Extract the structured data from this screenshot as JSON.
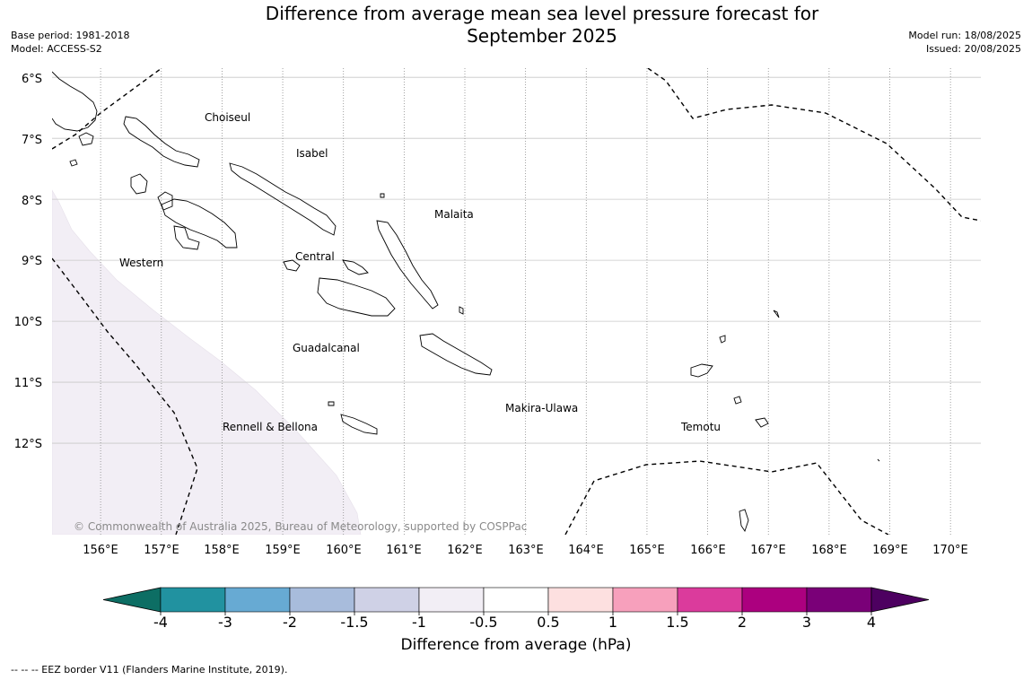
{
  "title": {
    "line1": "Difference from average mean sea level pressure forecast for",
    "line2": "September 2025"
  },
  "meta_left": {
    "base_period": "Base period: 1981-2018",
    "model": "Model: ACCESS-S2"
  },
  "meta_right": {
    "model_run": "Model run: 18/08/2025",
    "issued": "Issued: 20/08/2025"
  },
  "map": {
    "lon_range": [
      155.2,
      170.5
    ],
    "lat_range": [
      -13.5,
      -5.85
    ],
    "latitude_labels": [
      "6°S",
      "7°S",
      "8°S",
      "9°S",
      "10°S",
      "11°S",
      "12°S"
    ],
    "latitude_values": [
      -6,
      -7,
      -8,
      -9,
      -10,
      -11,
      -12
    ],
    "longitude_labels": [
      "156°E",
      "157°E",
      "158°E",
      "159°E",
      "160°E",
      "161°E",
      "162°E",
      "163°E",
      "164°E",
      "165°E",
      "166°E",
      "167°E",
      "168°E",
      "169°E",
      "170°E"
    ],
    "longitude_values": [
      156,
      157,
      158,
      159,
      160,
      161,
      162,
      163,
      164,
      165,
      166,
      167,
      168,
      169,
      170
    ],
    "gridlines": true,
    "shaded_anomaly": {
      "range": "-1 to -0.5",
      "color": "#f2eef5",
      "location": "south-west"
    },
    "regions": [
      {
        "name": "Choiseul",
        "lon": 157.7,
        "lat": -6.7
      },
      {
        "name": "Isabel",
        "lon": 159.2,
        "lat": -7.2
      },
      {
        "name": "Malaita",
        "lon": 161.5,
        "lat": -8.2
      },
      {
        "name": "Western",
        "lon": 156.3,
        "lat": -9.0
      },
      {
        "name": "Central",
        "lon": 159.2,
        "lat": -8.9
      },
      {
        "name": "Guadalcanal",
        "lon": 159.2,
        "lat": -10.4
      },
      {
        "name": "Makira-Ulawa",
        "lon": 162.6,
        "lat": -11.4
      },
      {
        "name": "Rennell & Bellona",
        "lon": 158.0,
        "lat": -11.7
      },
      {
        "name": "Temotu",
        "lon": 165.6,
        "lat": -11.7
      }
    ],
    "copyright": "© Commonwealth of Australia 2025, Bureau of Meteorology, supported by COSPPac"
  },
  "colorbar": {
    "label": "Difference from average (hPa)",
    "ticks": [
      "-4",
      "-3",
      "-2",
      "-1.5",
      "-1",
      "-0.5",
      "0.5",
      "1",
      "1.5",
      "2",
      "3",
      "4"
    ],
    "colors": [
      "#0d6e64",
      "#2192a0",
      "#67aad3",
      "#a8bcdc",
      "#cfd1e6",
      "#f2eef5",
      "#ffffff",
      "#fde0e0",
      "#f7a0bc",
      "#db3b9c",
      "#ac007f",
      "#7a0078",
      "#4d0060"
    ]
  },
  "footnote": "--  --  -- EEZ border V11 (Flanders Marine Institute, 2019)."
}
